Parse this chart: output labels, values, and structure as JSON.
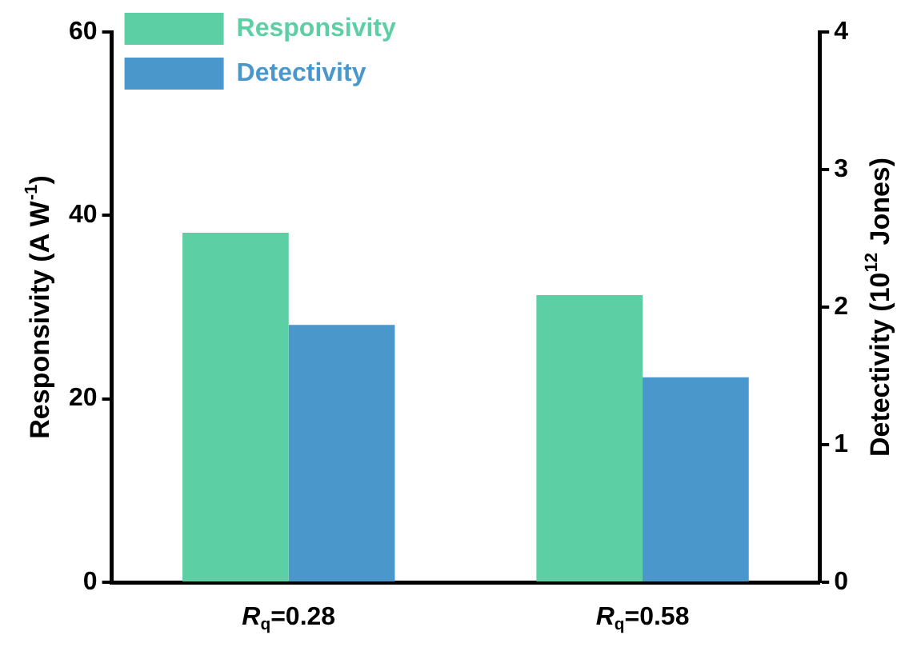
{
  "chart_data": {
    "type": "bar",
    "categories": [
      "R$_{q}$=0.28",
      "R$_{q}$=0.58"
    ],
    "series": [
      {
        "name": "Responsivity",
        "color": "#5ccfa5",
        "values": [
          38.1,
          31.3
        ]
      },
      {
        "name": "Detectivity",
        "color": "#4a97cc",
        "values": [
          1.87,
          1.49
        ],
        "axis": "y2"
      }
    ],
    "ylabel": "Responsivity (A W$^{-1}$)",
    "y2label": "Detectivity (10$^{12}$ Jones)",
    "ylim": [
      0,
      60
    ],
    "yticks": [
      0,
      20,
      40,
      60
    ],
    "y2lim": [
      0,
      4
    ],
    "y2ticks": [
      0,
      1,
      2,
      3,
      4
    ],
    "legend": "top left"
  }
}
